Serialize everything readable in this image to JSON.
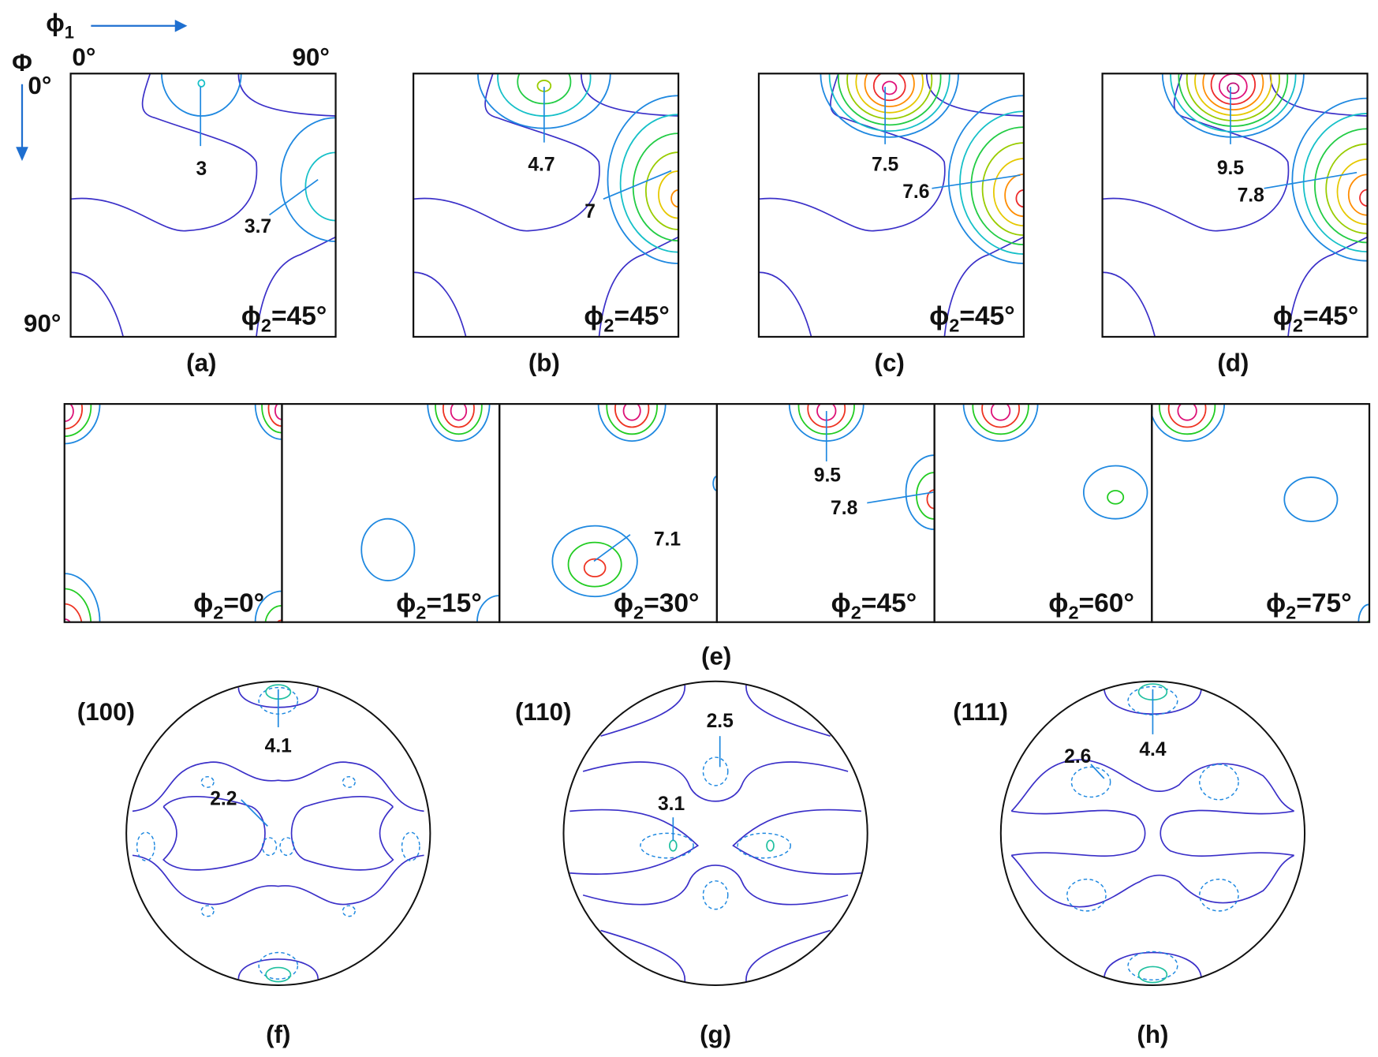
{
  "axes": {
    "phi1": {
      "symbol": "ϕ",
      "sub": "1"
    },
    "Phi": "Φ",
    "phi1_start": "0°",
    "phi1_end": "90°",
    "Phi_start": "0°",
    "Phi_end": "90°"
  },
  "odf_sections": [
    {
      "label": "(a)",
      "section": {
        "symbol": "ϕ",
        "sub": "2",
        "text": "=45°"
      },
      "annotations": [
        "3",
        "3.7"
      ]
    },
    {
      "label": "(b)",
      "section": {
        "symbol": "ϕ",
        "sub": "2",
        "text": "=45°"
      },
      "annotations": [
        "4.7",
        "7"
      ]
    },
    {
      "label": "(c)",
      "section": {
        "symbol": "ϕ",
        "sub": "2",
        "text": "=45°"
      },
      "annotations": [
        "7.5",
        "7.6"
      ]
    },
    {
      "label": "(d)",
      "section": {
        "symbol": "ϕ",
        "sub": "2",
        "text": "=45°"
      },
      "annotations": [
        "9.5",
        "7.8"
      ]
    }
  ],
  "row_e": {
    "label": "(e)",
    "sections": [
      {
        "section": {
          "symbol": "ϕ",
          "sub": "2",
          "text": "=0°"
        },
        "annotations": []
      },
      {
        "section": {
          "symbol": "ϕ",
          "sub": "2",
          "text": "=15°"
        },
        "annotations": []
      },
      {
        "section": {
          "symbol": "ϕ",
          "sub": "2",
          "text": "=30°"
        },
        "annotations": [
          "7.1"
        ]
      },
      {
        "section": {
          "symbol": "ϕ",
          "sub": "2",
          "text": "=45°"
        },
        "annotations": [
          "9.5",
          "7.8"
        ]
      },
      {
        "section": {
          "symbol": "ϕ",
          "sub": "2",
          "text": "=60°"
        },
        "annotations": []
      },
      {
        "section": {
          "symbol": "ϕ",
          "sub": "2",
          "text": "=75°"
        },
        "annotations": []
      }
    ]
  },
  "pole_figures": [
    {
      "plane": "(100)",
      "label": "(f)",
      "annotations": [
        "4.1",
        "2.2"
      ]
    },
    {
      "plane": "(110)",
      "label": "(g)",
      "annotations": [
        "2.5",
        "3.1"
      ]
    },
    {
      "plane": "(111)",
      "label": "(h)",
      "annotations": [
        "2.6",
        "4.4"
      ]
    }
  ]
}
